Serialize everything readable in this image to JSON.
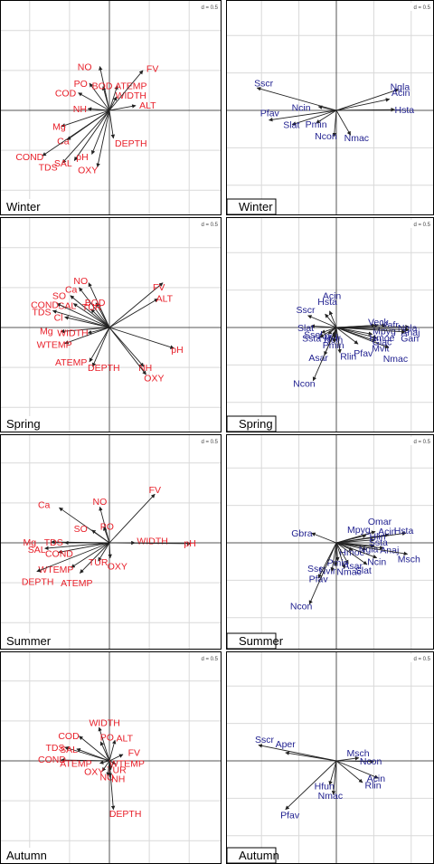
{
  "colors": {
    "env": "#e8202a",
    "species": "#1f1f8f",
    "arrow": "#222222",
    "grid": "#d9d9d9",
    "frame": "#000000",
    "scaleBox": "#ffffff"
  },
  "chart_data": [
    {
      "type": "scatter",
      "kind": "env",
      "season": "Winter",
      "scale_label": "d = 0.5",
      "xlim": [
        -1.25,
        1.25
      ],
      "ylim": [
        -1.25,
        1.25
      ],
      "vectors": [
        {
          "label": "NO",
          "x": -0.12,
          "y": 0.55,
          "lx": -0.31,
          "ly": 0.55
        },
        {
          "label": "PO",
          "x": -0.25,
          "y": 0.34,
          "lx": -0.36,
          "ly": 0.34
        },
        {
          "label": "BOD",
          "x": -0.08,
          "y": 0.3,
          "lx": -0.09,
          "ly": 0.31
        },
        {
          "label": "COD",
          "x": -0.39,
          "y": 0.22,
          "lx": -0.55,
          "ly": 0.22
        },
        {
          "label": "NH",
          "x": -0.27,
          "y": 0.02,
          "lx": -0.37,
          "ly": 0.02
        },
        {
          "label": "Mg",
          "x": -0.6,
          "y": -0.2,
          "lx": -0.63,
          "ly": -0.2
        },
        {
          "label": "Ca",
          "x": -0.53,
          "y": -0.37,
          "lx": -0.58,
          "ly": -0.38
        },
        {
          "label": "COND",
          "x": -0.84,
          "y": -0.57,
          "lx": -1.0,
          "ly": -0.58
        },
        {
          "label": "TDS",
          "x": -0.59,
          "y": -0.66,
          "lx": -0.77,
          "ly": -0.71
        },
        {
          "label": "SAL",
          "x": -0.44,
          "y": -0.63,
          "lx": -0.58,
          "ly": -0.66
        },
        {
          "label": "pH",
          "x": -0.22,
          "y": -0.55,
          "lx": -0.34,
          "ly": -0.58
        },
        {
          "label": "OXY",
          "x": -0.15,
          "y": -0.71,
          "lx": -0.27,
          "ly": -0.74
        },
        {
          "label": "DEPTH",
          "x": 0.05,
          "y": -0.35,
          "lx": 0.27,
          "ly": -0.41
        },
        {
          "label": "ALT",
          "x": 0.33,
          "y": 0.06,
          "lx": 0.48,
          "ly": 0.07
        },
        {
          "label": "WIDTH",
          "x": 0.09,
          "y": 0.17,
          "lx": 0.27,
          "ly": 0.19
        },
        {
          "label": "ATEMP",
          "x": 0.1,
          "y": 0.31,
          "lx": 0.27,
          "ly": 0.31
        },
        {
          "label": "FV",
          "x": 0.42,
          "y": 0.5,
          "lx": 0.54,
          "ly": 0.53
        }
      ]
    },
    {
      "type": "scatter",
      "kind": "species",
      "season": "Winter",
      "scale_label": "d = 0.5",
      "xlim": [
        -1.25,
        1.25
      ],
      "ylim": [
        -1.25,
        1.25
      ],
      "vectors": [
        {
          "label": "Sscr",
          "x": -1.06,
          "y": 0.3,
          "lx": -0.97,
          "ly": 0.37
        },
        {
          "label": "Ncin",
          "x": -0.24,
          "y": 0.05,
          "lx": -0.47,
          "ly": 0.04
        },
        {
          "label": "Pfav",
          "x": -0.9,
          "y": -0.13,
          "lx": -0.89,
          "ly": -0.03
        },
        {
          "label": "Slat",
          "x": -0.59,
          "y": -0.19,
          "lx": -0.6,
          "ly": -0.19
        },
        {
          "label": "Pmin",
          "x": -0.27,
          "y": -0.17,
          "lx": -0.27,
          "ly": -0.18
        },
        {
          "label": "Ncon",
          "x": -0.03,
          "y": -0.35,
          "lx": -0.14,
          "ly": -0.34
        },
        {
          "label": "Nmac",
          "x": 0.19,
          "y": -0.33,
          "lx": 0.27,
          "ly": -0.36
        },
        {
          "label": "Ngla",
          "x": 0.83,
          "y": 0.28,
          "lx": 0.85,
          "ly": 0.32
        },
        {
          "label": "Acin",
          "x": 0.71,
          "y": 0.15,
          "lx": 0.86,
          "ly": 0.24
        },
        {
          "label": "Hsta",
          "x": 0.78,
          "y": 0.01,
          "lx": 0.91,
          "ly": 0.01
        }
      ]
    },
    {
      "type": "scatter",
      "kind": "env",
      "season": "Spring",
      "scale_label": "d = 0.5",
      "xlim": [
        -1.25,
        1.25
      ],
      "ylim": [
        -1.25,
        1.25
      ],
      "vectors": [
        {
          "label": "NO",
          "x": -0.26,
          "y": 0.56,
          "lx": -0.36,
          "ly": 0.59
        },
        {
          "label": "Ca",
          "x": -0.38,
          "y": 0.5,
          "lx": -0.48,
          "ly": 0.48
        },
        {
          "label": "SO",
          "x": -0.49,
          "y": 0.4,
          "lx": -0.63,
          "ly": 0.4
        },
        {
          "label": "BOD",
          "x": -0.17,
          "y": 0.31,
          "lx": -0.18,
          "ly": 0.32
        },
        {
          "label": "SAL",
          "x": -0.45,
          "y": 0.3,
          "lx": -0.53,
          "ly": 0.28
        },
        {
          "label": "TUR",
          "x": -0.23,
          "y": 0.23,
          "lx": -0.22,
          "ly": 0.26
        },
        {
          "label": "COND",
          "x": -0.66,
          "y": 0.3,
          "lx": -0.81,
          "ly": 0.29
        },
        {
          "label": "TDS",
          "x": -0.71,
          "y": 0.21,
          "lx": -0.85,
          "ly": 0.2
        },
        {
          "label": "Cl",
          "x": -0.56,
          "y": 0.13,
          "lx": -0.64,
          "ly": 0.13
        },
        {
          "label": "Mg",
          "x": -0.61,
          "y": -0.05,
          "lx": -0.79,
          "ly": -0.04
        },
        {
          "label": "WIDTH",
          "x": -0.27,
          "y": -0.07,
          "lx": -0.46,
          "ly": -0.06
        },
        {
          "label": "WTEMP",
          "x": -0.56,
          "y": -0.2,
          "lx": -0.69,
          "ly": -0.21
        },
        {
          "label": "ATEMP",
          "x": -0.25,
          "y": -0.43,
          "lx": -0.48,
          "ly": -0.43
        },
        {
          "label": "DEPTH",
          "x": -0.21,
          "y": -0.49,
          "lx": -0.07,
          "ly": -0.5
        },
        {
          "label": "NH",
          "x": 0.43,
          "y": -0.49,
          "lx": 0.45,
          "ly": -0.5
        },
        {
          "label": "OXY",
          "x": 0.46,
          "y": -0.59,
          "lx": 0.56,
          "ly": -0.63
        },
        {
          "label": "pH",
          "x": 0.81,
          "y": -0.26,
          "lx": 0.85,
          "ly": -0.27
        },
        {
          "label": "ALT",
          "x": 0.61,
          "y": 0.36,
          "lx": 0.69,
          "ly": 0.37
        },
        {
          "label": "FV",
          "x": 0.67,
          "y": 0.56,
          "lx": 0.62,
          "ly": 0.51
        }
      ]
    },
    {
      "type": "scatter",
      "kind": "species",
      "season": "Spring",
      "scale_label": "d = 0.5",
      "xlim": [
        -1.25,
        1.25
      ],
      "ylim": [
        -1.25,
        1.25
      ],
      "vectors": [
        {
          "label": "Acin",
          "x": -0.09,
          "y": 0.22,
          "lx": -0.06,
          "ly": 0.43
        },
        {
          "label": "Hsta",
          "x": -0.15,
          "y": 0.18,
          "lx": -0.12,
          "ly": 0.35
        },
        {
          "label": "Sscr",
          "x": -0.38,
          "y": 0.16,
          "lx": -0.41,
          "ly": 0.24
        },
        {
          "label": "Slat",
          "x": -0.34,
          "y": 0.02,
          "lx": -0.41,
          "ly": 0.0
        },
        {
          "label": "Ssel",
          "x": -0.2,
          "y": -0.07,
          "lx": -0.31,
          "ly": -0.09
        },
        {
          "label": "Aper",
          "x": -0.11,
          "y": -0.09,
          "lx": -0.11,
          "ly": -0.11
        },
        {
          "label": "Ssta",
          "x": -0.22,
          "y": -0.13,
          "lx": -0.33,
          "ly": -0.14
        },
        {
          "label": "Ncin",
          "x": -0.03,
          "y": -0.15,
          "lx": -0.04,
          "ly": -0.16
        },
        {
          "label": "Nvir",
          "x": -0.04,
          "y": -0.12,
          "lx": -0.05,
          "ly": -0.13
        },
        {
          "label": "Pmin",
          "x": -0.03,
          "y": -0.2,
          "lx": -0.04,
          "ly": -0.23
        },
        {
          "label": "Asar",
          "x": -0.16,
          "y": -0.37,
          "lx": -0.24,
          "ly": -0.4
        },
        {
          "label": "Rlin",
          "x": 0.05,
          "y": -0.34,
          "lx": 0.16,
          "ly": -0.38
        },
        {
          "label": "Ncon",
          "x": -0.31,
          "y": -0.71,
          "lx": -0.43,
          "ly": -0.74
        },
        {
          "label": "Pfav",
          "x": 0.29,
          "y": -0.22,
          "lx": 0.36,
          "ly": -0.34
        },
        {
          "label": "Mvit",
          "x": 0.53,
          "y": -0.18,
          "lx": 0.59,
          "ly": -0.27
        },
        {
          "label": "Nmac",
          "x": 0.7,
          "y": -0.27,
          "lx": 0.79,
          "ly": -0.41
        },
        {
          "label": "Glac",
          "x": 0.54,
          "y": -0.14,
          "lx": 0.61,
          "ly": -0.19
        },
        {
          "label": "Hmoe",
          "x": 0.48,
          "y": -0.09,
          "lx": 0.61,
          "ly": -0.13
        },
        {
          "label": "Mpyg",
          "x": 0.56,
          "y": 0.03,
          "lx": 0.64,
          "ly": -0.04
        },
        {
          "label": "Veck",
          "x": 0.52,
          "y": 0.03,
          "lx": 0.56,
          "ly": 0.08
        },
        {
          "label": "Vafr",
          "x": 0.66,
          "y": 0.03,
          "lx": 0.72,
          "ly": 0.04
        },
        {
          "label": "Ngla",
          "x": 0.97,
          "y": 0.01,
          "lx": 0.95,
          "ly": 0.0
        },
        {
          "label": "Anaj",
          "x": 0.97,
          "y": -0.03,
          "lx": 0.99,
          "ly": -0.06
        },
        {
          "label": "Gan",
          "x": 0.92,
          "y": -0.06,
          "lx": 0.98,
          "ly": -0.14
        }
      ]
    },
    {
      "type": "scatter",
      "kind": "env",
      "season": "Summer",
      "scale_label": "d = 0.5",
      "xlim": [
        -1.25,
        1.25
      ],
      "ylim": [
        -1.25,
        1.25
      ],
      "vectors": [
        {
          "label": "Ca",
          "x": -0.63,
          "y": 0.44,
          "lx": -0.82,
          "ly": 0.48
        },
        {
          "label": "NO",
          "x": -0.12,
          "y": 0.45,
          "lx": -0.12,
          "ly": 0.52
        },
        {
          "label": "SO",
          "x": -0.22,
          "y": 0.16,
          "lx": -0.36,
          "ly": 0.18
        },
        {
          "label": "PO",
          "x": -0.07,
          "y": 0.2,
          "lx": -0.03,
          "ly": 0.21
        },
        {
          "label": "Mg",
          "x": -0.73,
          "y": 0.01,
          "lx": -1.0,
          "ly": 0.01
        },
        {
          "label": "TDS",
          "x": -0.56,
          "y": 0.0,
          "lx": -0.7,
          "ly": 0.01
        },
        {
          "label": "SAL",
          "x": -0.81,
          "y": -0.07,
          "lx": -0.91,
          "ly": -0.08
        },
        {
          "label": "COND",
          "x": -0.64,
          "y": -0.12,
          "lx": -0.63,
          "ly": -0.13
        },
        {
          "label": "WTEMP",
          "x": -0.48,
          "y": -0.31,
          "lx": -0.67,
          "ly": -0.33
        },
        {
          "label": "DEPTH",
          "x": -0.91,
          "y": -0.36,
          "lx": -0.9,
          "ly": -0.48
        },
        {
          "label": "ATEMP",
          "x": -0.37,
          "y": -0.38,
          "lx": -0.41,
          "ly": -0.5
        },
        {
          "label": "TUR",
          "x": -0.14,
          "y": -0.23,
          "lx": -0.14,
          "ly": -0.24
        },
        {
          "label": "OXY",
          "x": 0.01,
          "y": -0.19,
          "lx": 0.1,
          "ly": -0.29
        },
        {
          "label": "WIDTH",
          "x": 0.32,
          "y": 0.0,
          "lx": 0.54,
          "ly": 0.03
        },
        {
          "label": "FV",
          "x": 0.57,
          "y": 0.61,
          "lx": 0.57,
          "ly": 0.67
        },
        {
          "label": "pH",
          "x": 1.02,
          "y": -0.01,
          "lx": 1.01,
          "ly": 0.0
        }
      ]
    },
    {
      "type": "scatter",
      "kind": "species",
      "season": "Summer",
      "scale_label": "d = 0.5",
      "xlim": [
        -1.25,
        1.25
      ],
      "ylim": [
        -1.25,
        1.25
      ],
      "vectors": [
        {
          "label": "Gbra",
          "x": -0.33,
          "y": 0.13,
          "lx": -0.46,
          "ly": 0.13
        },
        {
          "label": "Omar",
          "x": 0.52,
          "y": 0.15,
          "lx": 0.58,
          "ly": 0.29
        },
        {
          "label": "Mpyg",
          "x": 0.4,
          "y": 0.1,
          "lx": 0.3,
          "ly": 0.18
        },
        {
          "label": "Acin",
          "x": 0.7,
          "y": 0.11,
          "lx": 0.68,
          "ly": 0.16
        },
        {
          "label": "Hsta",
          "x": 0.93,
          "y": 0.13,
          "lx": 0.9,
          "ly": 0.17
        },
        {
          "label": "Hlin",
          "x": 0.51,
          "y": 0.04,
          "lx": 0.55,
          "ly": 0.09
        },
        {
          "label": "Ssta",
          "x": 0.51,
          "y": -0.04,
          "lx": 0.56,
          "ly": 0.01
        },
        {
          "label": "Hmoe",
          "x": 0.22,
          "y": -0.1,
          "lx": 0.21,
          "ly": -0.12
        },
        {
          "label": "Ngla",
          "x": 0.4,
          "y": -0.09,
          "lx": 0.43,
          "ly": -0.08
        },
        {
          "label": "Anaj",
          "x": 0.63,
          "y": -0.07,
          "lx": 0.71,
          "ly": -0.09
        },
        {
          "label": "Msch",
          "x": 0.95,
          "y": -0.15,
          "lx": 0.97,
          "ly": -0.21
        },
        {
          "label": "Ncin",
          "x": 0.54,
          "y": -0.2,
          "lx": 0.54,
          "ly": -0.25
        },
        {
          "label": "Slat",
          "x": 0.41,
          "y": -0.29,
          "lx": 0.36,
          "ly": -0.36
        },
        {
          "label": "Asar",
          "x": 0.16,
          "y": -0.28,
          "lx": 0.22,
          "ly": -0.3
        },
        {
          "label": "Nmac",
          "x": 0.11,
          "y": -0.34,
          "lx": 0.17,
          "ly": -0.38
        },
        {
          "label": "Pmin",
          "x": 0.02,
          "y": -0.24,
          "lx": 0.02,
          "ly": -0.26
        },
        {
          "label": "Nvir",
          "x": -0.01,
          "y": -0.31,
          "lx": -0.12,
          "ly": -0.37
        },
        {
          "label": "Sscr",
          "x": -0.06,
          "y": -0.38,
          "lx": -0.26,
          "ly": -0.34
        },
        {
          "label": "Pfav",
          "x": -0.24,
          "y": -0.47,
          "lx": -0.24,
          "ly": -0.48
        },
        {
          "label": "Ncon",
          "x": -0.36,
          "y": -0.82,
          "lx": -0.47,
          "ly": -0.84
        }
      ]
    },
    {
      "type": "scatter",
      "kind": "env",
      "season": "Autumn",
      "scale_label": "d = 0.5",
      "xlim": [
        -1.25,
        1.25
      ],
      "ylim": [
        -1.25,
        1.25
      ],
      "vectors": [
        {
          "label": "COD",
          "x": -0.38,
          "y": 0.31,
          "lx": -0.51,
          "ly": 0.32
        },
        {
          "label": "WIDTH",
          "x": -0.13,
          "y": 0.42,
          "lx": -0.06,
          "ly": 0.48
        },
        {
          "label": "PO",
          "x": -0.11,
          "y": 0.24,
          "lx": -0.03,
          "ly": 0.3
        },
        {
          "label": "ALT",
          "x": 0.07,
          "y": 0.26,
          "lx": 0.19,
          "ly": 0.29
        },
        {
          "label": "TDS",
          "x": -0.56,
          "y": 0.17,
          "lx": -0.68,
          "ly": 0.17
        },
        {
          "label": "SAL",
          "x": -0.41,
          "y": 0.15,
          "lx": -0.51,
          "ly": 0.15
        },
        {
          "label": "FV",
          "x": 0.17,
          "y": 0.08,
          "lx": 0.31,
          "ly": 0.11
        },
        {
          "label": "COND",
          "x": -0.61,
          "y": 0.01,
          "lx": -0.72,
          "ly": 0.02
        },
        {
          "label": "ATEMP",
          "x": -0.12,
          "y": -0.03,
          "lx": -0.42,
          "ly": -0.03
        },
        {
          "label": "WTEMP",
          "x": 0.08,
          "y": -0.04,
          "lx": 0.22,
          "ly": -0.03
        },
        {
          "label": "TUR",
          "x": 0.02,
          "y": -0.11,
          "lx": 0.09,
          "ly": -0.11
        },
        {
          "label": "OXY",
          "x": -0.09,
          "y": -0.13,
          "lx": -0.19,
          "ly": -0.13
        },
        {
          "label": "NO",
          "x": -0.02,
          "y": -0.19,
          "lx": -0.03,
          "ly": -0.2
        },
        {
          "label": "NH",
          "x": 0.01,
          "y": -0.2,
          "lx": 0.11,
          "ly": -0.22
        },
        {
          "label": "DEPTH",
          "x": 0.05,
          "y": -0.61,
          "lx": 0.2,
          "ly": -0.66
        }
      ]
    },
    {
      "type": "scatter",
      "kind": "species",
      "season": "Autumn",
      "scale_label": "d = 0.5",
      "xlim": [
        -1.25,
        1.25
      ],
      "ylim": [
        -1.25,
        1.25
      ],
      "vectors": [
        {
          "label": "Sscr",
          "x": -1.04,
          "y": 0.21,
          "lx": -0.96,
          "ly": 0.29
        },
        {
          "label": "Aper",
          "x": -0.68,
          "y": 0.11,
          "lx": -0.68,
          "ly": 0.23
        },
        {
          "label": "Msch",
          "x": 0.3,
          "y": 0.04,
          "lx": 0.29,
          "ly": 0.11
        },
        {
          "label": "Ncon",
          "x": 0.5,
          "y": -0.01,
          "lx": 0.46,
          "ly": 0.0
        },
        {
          "label": "Acin",
          "x": 0.56,
          "y": -0.23,
          "lx": 0.53,
          "ly": -0.23
        },
        {
          "label": "Rlin",
          "x": 0.35,
          "y": -0.29,
          "lx": 0.49,
          "ly": -0.32
        },
        {
          "label": "Hfun",
          "x": -0.09,
          "y": -0.32,
          "lx": -0.16,
          "ly": -0.33
        },
        {
          "label": "Nmac",
          "x": -0.04,
          "y": -0.45,
          "lx": -0.08,
          "ly": -0.46
        },
        {
          "label": "Pfav",
          "x": -0.68,
          "y": -0.65,
          "lx": -0.62,
          "ly": -0.72
        }
      ]
    }
  ]
}
